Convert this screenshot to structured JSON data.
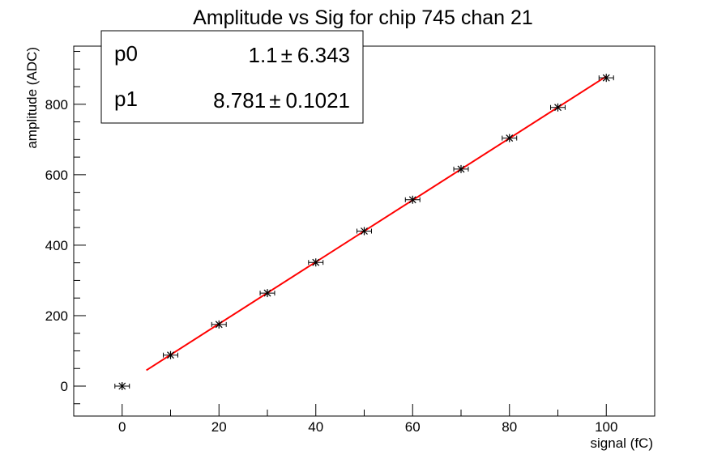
{
  "chart_data": {
    "type": "scatter",
    "title": "Amplitude vs Sig for chip 745 chan 21",
    "xlabel": "signal (fC)",
    "ylabel": "amplitude (ADC)",
    "xlim": [
      -10,
      110
    ],
    "ylim": [
      -85,
      965
    ],
    "x_ticks": [
      0,
      20,
      40,
      60,
      80,
      100
    ],
    "y_ticks": [
      0,
      200,
      400,
      600,
      800
    ],
    "x_tick_labels": [
      "0",
      "20",
      "40",
      "60",
      "80",
      "100"
    ],
    "y_tick_labels": [
      "0",
      "200",
      "400",
      "600",
      "800"
    ],
    "grid": false,
    "series": [
      {
        "x": [
          0,
          10,
          20,
          30,
          40,
          50,
          60,
          70,
          80,
          90,
          100
        ],
        "y": [
          0,
          88,
          175,
          264,
          351,
          440,
          529,
          616,
          704,
          791,
          875
        ],
        "x_err": 1.5,
        "color": "#000000",
        "marker": "star"
      }
    ],
    "fit": {
      "x_range": [
        5,
        100
      ],
      "p0": 1.1,
      "p1": 8.781,
      "color": "#ff0000"
    },
    "stats_box": {
      "position": "top-left",
      "rows": [
        {
          "name": "p0",
          "value": "1.1",
          "pm": "±",
          "error": "6.343"
        },
        {
          "name": "p1",
          "value": "8.781",
          "pm": "±",
          "error": "0.1021"
        }
      ]
    }
  }
}
